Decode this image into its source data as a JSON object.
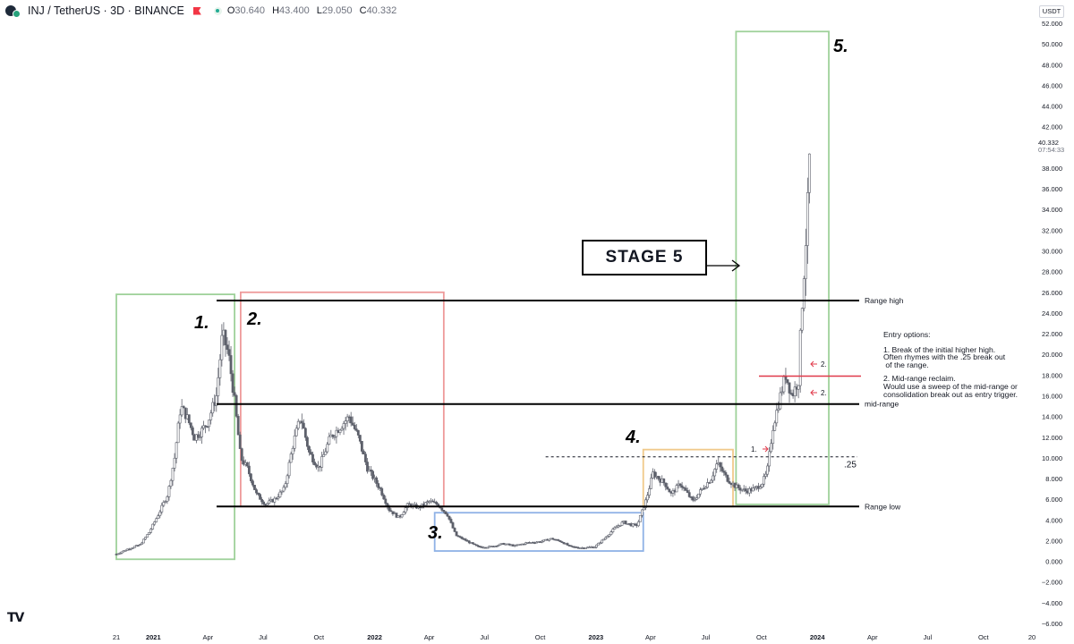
{
  "header": {
    "symbol": "INJ / TetherUS · 3D · BINANCE",
    "open_label": "O",
    "open": "30.640",
    "high_label": "H",
    "high": "43.400",
    "low_label": "L",
    "low": "29.050",
    "close_label": "C",
    "close": "40.332"
  },
  "currency": "USDT",
  "last_price": {
    "value": "40.332",
    "countdown": "07:54:33"
  },
  "watermark": "TV",
  "stage_box_label": "STAGE 5",
  "entry_note": {
    "title": "Entry options:",
    "line1": "1. Break of the initial higher high.",
    "line2": "Often rhymes with the .25 break out",
    "line3": " of the range.",
    "line4": "2. Mid-range reclaim.",
    "line5": "Would use a sweep of the mid-range or",
    "line6": "consolidation break out as entry trigger."
  },
  "colors": {
    "stage1": "#9fd19a",
    "stage2": "#ee9a9a",
    "stage3": "#8fb2e6",
    "stage4": "#f0c98a",
    "stage5": "#9fd19a",
    "candle": "#5d606b",
    "red_marker": "#e0394a"
  },
  "chart_data": {
    "type": "candlestick",
    "title": "INJ / TetherUS · 3D · BINANCE",
    "y_axis": {
      "side": "right",
      "ylim": [
        -6,
        52
      ],
      "ticks": [
        "52.000",
        "50.000",
        "48.000",
        "46.000",
        "44.000",
        "42.000",
        "38.000",
        "36.000",
        "34.000",
        "32.000",
        "30.000",
        "28.000",
        "26.000",
        "24.000",
        "22.000",
        "20.000",
        "18.000",
        "16.000",
        "14.000",
        "12.000",
        "10.000",
        "8.000",
        "6.000",
        "4.000",
        "2.000",
        "0.000",
        "−2.000",
        "−4.000",
        "−6.000"
      ],
      "tick_values": [
        52,
        50,
        48,
        46,
        44,
        42,
        38,
        36,
        34,
        32,
        30,
        28,
        26,
        24,
        22,
        20,
        18,
        16,
        14,
        12,
        10,
        8,
        6,
        4,
        2,
        0,
        -2,
        -4,
        -6
      ]
    },
    "x_axis": {
      "xlim": [
        "2020-11-01",
        "2024-12-20"
      ],
      "labels": [
        {
          "date": "2020-11-01",
          "text": "21"
        },
        {
          "date": "2021-01-01",
          "text": "2021"
        },
        {
          "date": "2021-04-01",
          "text": "Apr"
        },
        {
          "date": "2021-07-01",
          "text": "Jul"
        },
        {
          "date": "2021-10-01",
          "text": "Oct"
        },
        {
          "date": "2022-01-01",
          "text": "2022"
        },
        {
          "date": "2022-04-01",
          "text": "Apr"
        },
        {
          "date": "2022-07-01",
          "text": "Jul"
        },
        {
          "date": "2022-10-01",
          "text": "Oct"
        },
        {
          "date": "2023-01-01",
          "text": "2023"
        },
        {
          "date": "2023-04-01",
          "text": "Apr"
        },
        {
          "date": "2023-07-01",
          "text": "Jul"
        },
        {
          "date": "2023-10-01",
          "text": "Oct"
        },
        {
          "date": "2024-01-01",
          "text": "2024"
        },
        {
          "date": "2024-04-01",
          "text": "Apr"
        },
        {
          "date": "2024-07-01",
          "text": "Jul"
        },
        {
          "date": "2024-10-01",
          "text": "Oct"
        },
        {
          "date": "2024-12-20",
          "text": "20"
        }
      ]
    },
    "price_path": [
      [
        "2020-11-01",
        0.7
      ],
      [
        "2020-11-20",
        1.2
      ],
      [
        "2020-12-10",
        1.6
      ],
      [
        "2020-12-25",
        2.8
      ],
      [
        "2021-01-10",
        4.6
      ],
      [
        "2021-01-25",
        6.5
      ],
      [
        "2021-02-05",
        10.0
      ],
      [
        "2021-02-15",
        15.0
      ],
      [
        "2021-02-25",
        14.0
      ],
      [
        "2021-03-10",
        12.0
      ],
      [
        "2021-03-20",
        12.5
      ],
      [
        "2021-04-01",
        13.5
      ],
      [
        "2021-04-15",
        16.0
      ],
      [
        "2021-04-25",
        22.0
      ],
      [
        "2021-05-05",
        20.0
      ],
      [
        "2021-05-15",
        15.5
      ],
      [
        "2021-05-25",
        10.0
      ],
      [
        "2021-06-05",
        9.0
      ],
      [
        "2021-06-20",
        6.5
      ],
      [
        "2021-07-05",
        5.5
      ],
      [
        "2021-07-20",
        6.0
      ],
      [
        "2021-08-05",
        7.0
      ],
      [
        "2021-08-20",
        11.5
      ],
      [
        "2021-09-01",
        14.0
      ],
      [
        "2021-09-15",
        10.5
      ],
      [
        "2021-10-01",
        9.0
      ],
      [
        "2021-10-20",
        12.0
      ],
      [
        "2021-11-05",
        13.0
      ],
      [
        "2021-11-20",
        14.0
      ],
      [
        "2021-12-05",
        12.0
      ],
      [
        "2021-12-20",
        9.0
      ],
      [
        "2022-01-10",
        7.0
      ],
      [
        "2022-01-25",
        5.0
      ],
      [
        "2022-02-10",
        4.2
      ],
      [
        "2022-02-25",
        5.5
      ],
      [
        "2022-03-15",
        5.2
      ],
      [
        "2022-04-01",
        5.8
      ],
      [
        "2022-04-15",
        5.5
      ],
      [
        "2022-05-01",
        4.5
      ],
      [
        "2022-05-15",
        2.5
      ],
      [
        "2022-06-01",
        2.0
      ],
      [
        "2022-06-20",
        1.4
      ],
      [
        "2022-07-10",
        1.4
      ],
      [
        "2022-08-01",
        1.7
      ],
      [
        "2022-08-20",
        1.5
      ],
      [
        "2022-09-10",
        1.8
      ],
      [
        "2022-10-01",
        1.9
      ],
      [
        "2022-10-20",
        2.2
      ],
      [
        "2022-11-05",
        1.9
      ],
      [
        "2022-11-20",
        1.4
      ],
      [
        "2022-12-10",
        1.3
      ],
      [
        "2022-12-30",
        1.4
      ],
      [
        "2023-01-15",
        2.2
      ],
      [
        "2023-02-01",
        3.2
      ],
      [
        "2023-02-15",
        3.8
      ],
      [
        "2023-03-01",
        3.5
      ],
      [
        "2023-03-10",
        3.5
      ],
      [
        "2023-03-25",
        6.0
      ],
      [
        "2023-04-05",
        8.5
      ],
      [
        "2023-04-15",
        8.0
      ],
      [
        "2023-04-25",
        7.5
      ],
      [
        "2023-05-05",
        6.5
      ],
      [
        "2023-05-20",
        7.5
      ],
      [
        "2023-06-10",
        5.8
      ],
      [
        "2023-06-25",
        7.0
      ],
      [
        "2023-07-10",
        8.0
      ],
      [
        "2023-07-20",
        9.5
      ],
      [
        "2023-08-05",
        8.0
      ],
      [
        "2023-08-20",
        7.2
      ],
      [
        "2023-09-05",
        6.8
      ],
      [
        "2023-09-20",
        7.0
      ],
      [
        "2023-10-01",
        7.5
      ],
      [
        "2023-10-10",
        8.5
      ],
      [
        "2023-10-20",
        13.0
      ],
      [
        "2023-11-01",
        16.0
      ],
      [
        "2023-11-10",
        18.0
      ],
      [
        "2023-11-20",
        16.0
      ],
      [
        "2023-12-01",
        17.5
      ],
      [
        "2023-12-05",
        23.0
      ],
      [
        "2023-12-10",
        28.0
      ],
      [
        "2023-12-15",
        33.0
      ],
      [
        "2023-12-20",
        40.3
      ]
    ],
    "horizontal_lines": [
      {
        "label": "Range high",
        "value": 25.2,
        "from": "2021-04-01"
      },
      {
        "label": "mid-range",
        "value": 15.2,
        "from": "2021-04-01"
      },
      {
        "label": "Range low",
        "value": 5.3,
        "from": "2021-04-01"
      },
      {
        "label": ".25",
        "value": 10.1,
        "from": "2022-10-10",
        "dashed": true
      }
    ],
    "red_level": {
      "value": 17.9,
      "from": "2023-10-01",
      "to": "2024-01-20"
    },
    "stages": [
      {
        "label": "1.",
        "from": "2020-11-01",
        "to": "2021-05-15",
        "low": 0.2,
        "high": 25.8
      },
      {
        "label": "2.",
        "from": "2021-05-25",
        "to": "2022-04-25",
        "low": 5.3,
        "high": 26.0
      },
      {
        "label": "3.",
        "from": "2022-04-10",
        "to": "2023-03-20",
        "low": 1.0,
        "high": 4.7
      },
      {
        "label": "4.",
        "from": "2023-03-20",
        "to": "2023-08-15",
        "low": 5.3,
        "high": 10.8
      },
      {
        "label": "5.",
        "from": "2023-08-20",
        "to": "2024-01-20",
        "low": 5.5,
        "high": 51.2
      }
    ],
    "markers": [
      {
        "label": "1.",
        "date": "2023-10-15",
        "value": 10.9
      },
      {
        "label": "2.",
        "date": "2023-12-25",
        "value": 16.0
      },
      {
        "label": "2.",
        "date": "2023-12-22",
        "value": 18.9
      }
    ],
    "last_close": 40.332
  }
}
